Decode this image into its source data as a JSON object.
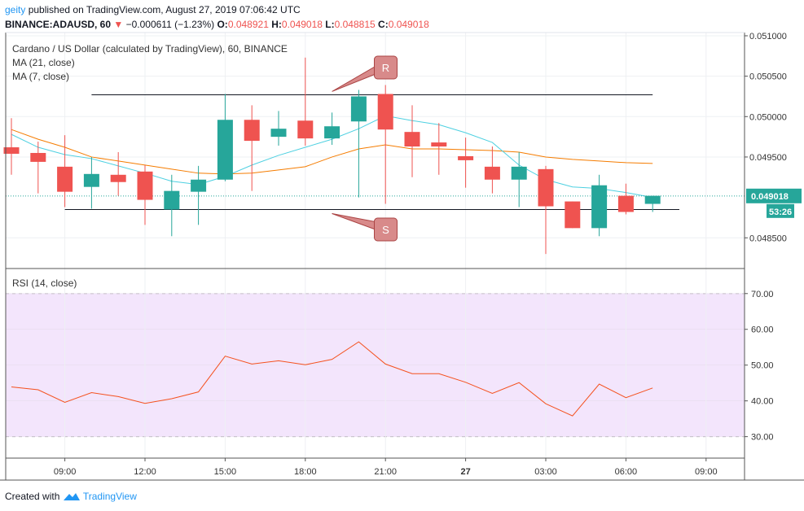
{
  "header": {
    "user": "geity",
    "published_text": "published on TradingView.com, August 27, 2019 07:06:42 UTC",
    "symbol": "BINANCE:ADAUSD, 60",
    "change": "−0.000611 (−1.23%)",
    "o_label": "O:",
    "o_value": "0.048921",
    "h_label": "H:",
    "h_value": "0.049018",
    "l_label": "L:",
    "l_value": "0.048815",
    "c_label": "C:",
    "c_value": "0.049018"
  },
  "legend": {
    "title": "Cardano / US Dollar (calculated by TradingView), 60, BINANCE",
    "ma21": "MA (21, close)",
    "ma7": "MA (7, close)",
    "rsi": "RSI (14, close)"
  },
  "annotations": {
    "resistance": "R",
    "support": "S"
  },
  "price_tag": {
    "price": "0.049018",
    "countdown": "53:26"
  },
  "footer": {
    "created_with": "Created with",
    "brand": "TradingView"
  },
  "colors": {
    "up": "#26a69a",
    "down": "#ef5350",
    "ma21": "#f57c00",
    "ma7": "#4dd0e1",
    "rsi": "#f4511e",
    "rsi_band": "#f3e5fc"
  },
  "chart_data": [
    {
      "type": "candlestick",
      "title": "Cardano / US Dollar (calculated by TradingView), 60, BINANCE",
      "x_ticks": [
        "09:00",
        "12:00",
        "15:00",
        "18:00",
        "21:00",
        "27",
        "03:00",
        "06:00",
        "09:00"
      ],
      "y_ticks": [
        "0.051000",
        "0.050500",
        "0.050000",
        "0.049500",
        "0.048500"
      ],
      "ylim": [
        0.04812,
        0.05104
      ],
      "candles": [
        {
          "o": 0.04962,
          "h": 0.04998,
          "l": 0.04928,
          "c": 0.04954
        },
        {
          "o": 0.04955,
          "h": 0.04969,
          "l": 0.04905,
          "c": 0.04944
        },
        {
          "o": 0.04938,
          "h": 0.04977,
          "l": 0.04888,
          "c": 0.04907
        },
        {
          "o": 0.04913,
          "h": 0.0495,
          "l": 0.04886,
          "c": 0.04929
        },
        {
          "o": 0.04928,
          "h": 0.04956,
          "l": 0.04902,
          "c": 0.04919
        },
        {
          "o": 0.04932,
          "h": 0.0494,
          "l": 0.04866,
          "c": 0.04897
        },
        {
          "o": 0.04885,
          "h": 0.04928,
          "l": 0.04852,
          "c": 0.04908
        },
        {
          "o": 0.04907,
          "h": 0.04939,
          "l": 0.04866,
          "c": 0.04922
        },
        {
          "o": 0.04922,
          "h": 0.05028,
          "l": 0.0492,
          "c": 0.04996
        },
        {
          "o": 0.04996,
          "h": 0.05014,
          "l": 0.04908,
          "c": 0.0497
        },
        {
          "o": 0.04975,
          "h": 0.05007,
          "l": 0.04964,
          "c": 0.04985
        },
        {
          "o": 0.04995,
          "h": 0.05073,
          "l": 0.04964,
          "c": 0.04973
        },
        {
          "o": 0.04973,
          "h": 0.05005,
          "l": 0.04965,
          "c": 0.04988
        },
        {
          "o": 0.04994,
          "h": 0.05033,
          "l": 0.049,
          "c": 0.05025
        },
        {
          "o": 0.05028,
          "h": 0.05039,
          "l": 0.04892,
          "c": 0.04984
        },
        {
          "o": 0.04981,
          "h": 0.05014,
          "l": 0.04925,
          "c": 0.04963
        },
        {
          "o": 0.04968,
          "h": 0.04992,
          "l": 0.04928,
          "c": 0.04963
        },
        {
          "o": 0.04951,
          "h": 0.04974,
          "l": 0.04912,
          "c": 0.04946
        },
        {
          "o": 0.04938,
          "h": 0.04963,
          "l": 0.04905,
          "c": 0.04922
        },
        {
          "o": 0.04922,
          "h": 0.04956,
          "l": 0.04888,
          "c": 0.04938
        },
        {
          "o": 0.04935,
          "h": 0.04939,
          "l": 0.0483,
          "c": 0.04889
        },
        {
          "o": 0.04895,
          "h": 0.04895,
          "l": 0.04862,
          "c": 0.04862
        },
        {
          "o": 0.04862,
          "h": 0.04928,
          "l": 0.04852,
          "c": 0.04915
        },
        {
          "o": 0.04902,
          "h": 0.04917,
          "l": 0.04879,
          "c": 0.04882
        },
        {
          "o": 0.04892,
          "h": 0.04902,
          "l": 0.04882,
          "c": 0.04902
        }
      ],
      "series": [
        {
          "name": "MA (21, close)",
          "values": [
            0.04984,
            0.04972,
            0.04962,
            0.0495,
            0.04945,
            0.0494,
            0.04935,
            0.0493,
            0.04929,
            0.0493,
            0.04934,
            0.04938,
            0.0495,
            0.0496,
            0.04965,
            0.0496,
            0.0496,
            0.04959,
            0.04958,
            0.04956,
            0.0495,
            0.04947,
            0.04945,
            0.04943,
            0.04942
          ]
        },
        {
          "name": "MA (7, close)",
          "values": [
            0.04978,
            0.04962,
            0.04953,
            0.04948,
            0.04939,
            0.0493,
            0.0492,
            0.04916,
            0.04926,
            0.0494,
            0.04952,
            0.04962,
            0.04972,
            0.04985,
            0.05001,
            0.04995,
            0.0499,
            0.0498,
            0.04968,
            0.0494,
            0.04922,
            0.04913,
            0.04911,
            0.04906,
            0.049
          ]
        }
      ],
      "lines": [
        {
          "label": "R",
          "value": 0.05027,
          "from": 3,
          "to": 24
        },
        {
          "label": "S",
          "value": 0.04885,
          "from": 2,
          "to": 25
        }
      ]
    },
    {
      "type": "line",
      "title": "RSI (14, close)",
      "y_ticks": [
        70,
        60,
        50,
        40,
        30
      ],
      "ylim": [
        24,
        77
      ],
      "band": [
        30,
        70
      ],
      "series": [
        {
          "name": "RSI (14, close)",
          "values": [
            43.9,
            43.1,
            39.6,
            42.3,
            41.2,
            39.3,
            40.6,
            42.5,
            52.5,
            50.3,
            51.2,
            50.1,
            51.6,
            56.5,
            50.3,
            47.6,
            47.6,
            45.2,
            42.1,
            45.1,
            39.2,
            35.8,
            44.7,
            40.9,
            43.6
          ]
        }
      ]
    }
  ]
}
